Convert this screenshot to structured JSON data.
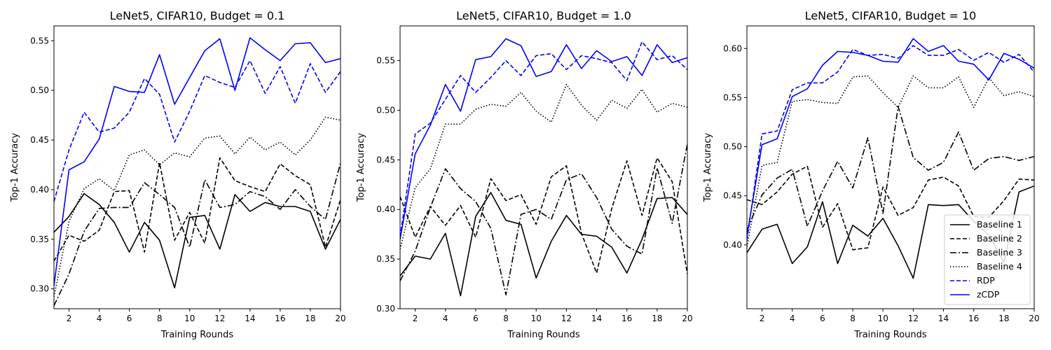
{
  "chart_data": [
    {
      "type": "line",
      "title": "LeNet5, CIFAR10, Budget = 0.1",
      "xlabel": "Training Rounds",
      "ylabel": "Top-1 Accuracy",
      "xlim": [
        1,
        20
      ],
      "ylim": [
        0.28,
        0.565
      ],
      "xticks": [
        "2",
        "4",
        "6",
        "8",
        "10",
        "12",
        "14",
        "16",
        "18",
        "20"
      ],
      "yticks": [
        "0.30",
        "0.35",
        "0.40",
        "0.45",
        "0.50",
        "0.55"
      ],
      "x": [
        1,
        2,
        3,
        4,
        5,
        6,
        7,
        8,
        9,
        10,
        11,
        12,
        13,
        14,
        15,
        16,
        17,
        18,
        19,
        20
      ],
      "series": [
        {
          "name": "Baseline 1",
          "color": "#000000",
          "dash": "solid",
          "values": [
            0.357,
            0.373,
            0.396,
            0.385,
            0.367,
            0.337,
            0.367,
            0.349,
            0.301,
            0.372,
            0.374,
            0.34,
            0.395,
            0.378,
            0.387,
            0.383,
            0.383,
            0.378,
            0.34,
            0.37
          ]
        },
        {
          "name": "Baseline 2",
          "color": "#000000",
          "dash": "dashed",
          "values": [
            0.328,
            0.354,
            0.348,
            0.359,
            0.398,
            0.399,
            0.337,
            0.427,
            0.349,
            0.377,
            0.346,
            0.432,
            0.409,
            0.403,
            0.398,
            0.426,
            0.414,
            0.405,
            0.342,
            0.39
          ]
        },
        {
          "name": "Baseline 3",
          "color": "#000000",
          "dash": "dashdot",
          "values": [
            0.283,
            0.315,
            0.358,
            0.381,
            0.382,
            0.382,
            0.407,
            0.395,
            0.382,
            0.342,
            0.41,
            0.382,
            0.385,
            0.398,
            0.393,
            0.38,
            0.4,
            0.383,
            0.37,
            0.427
          ]
        },
        {
          "name": "Baseline 4",
          "color": "#000000",
          "dash": "dotted",
          "values": [
            0.292,
            0.368,
            0.401,
            0.411,
            0.399,
            0.435,
            0.44,
            0.425,
            0.437,
            0.433,
            0.452,
            0.454,
            0.436,
            0.453,
            0.44,
            0.448,
            0.435,
            0.45,
            0.473,
            0.47
          ]
        },
        {
          "name": "RDP",
          "color": "#0000ff",
          "dash": "dashed",
          "values": [
            0.388,
            0.44,
            0.478,
            0.458,
            0.462,
            0.478,
            0.512,
            0.496,
            0.448,
            0.479,
            0.515,
            0.508,
            0.503,
            0.53,
            0.497,
            0.524,
            0.487,
            0.527,
            0.498,
            0.519
          ]
        },
        {
          "name": "zCDP",
          "color": "#0000ff",
          "dash": "solid",
          "values": [
            0.303,
            0.42,
            0.428,
            0.451,
            0.504,
            0.499,
            0.498,
            0.536,
            0.486,
            0.513,
            0.54,
            0.552,
            0.5,
            0.553,
            0.541,
            0.53,
            0.547,
            0.548,
            0.528,
            0.532
          ]
        }
      ]
    },
    {
      "type": "line",
      "title": "LeNet5, CIFAR10, Budget = 1.0",
      "xlabel": "Training Rounds",
      "ylabel": "Top-1 Accuracy",
      "xlim": [
        1,
        20
      ],
      "ylim": [
        0.3,
        0.585
      ],
      "xticks": [
        "2",
        "4",
        "6",
        "8",
        "10",
        "12",
        "14",
        "16",
        "18",
        "20"
      ],
      "yticks": [
        "0.30",
        "0.35",
        "0.40",
        "0.45",
        "0.50",
        "0.55"
      ],
      "x": [
        1,
        2,
        3,
        4,
        5,
        6,
        7,
        8,
        9,
        10,
        11,
        12,
        13,
        14,
        15,
        16,
        17,
        18,
        19,
        20
      ],
      "series": [
        {
          "name": "Baseline 1",
          "color": "#000000",
          "dash": "solid",
          "values": [
            0.333,
            0.353,
            0.35,
            0.376,
            0.313,
            0.393,
            0.417,
            0.389,
            0.385,
            0.331,
            0.368,
            0.394,
            0.375,
            0.373,
            0.362,
            0.336,
            0.37,
            0.411,
            0.412,
            0.395
          ]
        },
        {
          "name": "Baseline 2",
          "color": "#000000",
          "dash": "dashed",
          "values": [
            0.413,
            0.372,
            0.403,
            0.384,
            0.404,
            0.372,
            0.431,
            0.409,
            0.415,
            0.385,
            0.433,
            0.444,
            0.376,
            0.336,
            0.401,
            0.449,
            0.394,
            0.452,
            0.428,
            0.335
          ]
        },
        {
          "name": "Baseline 3",
          "color": "#000000",
          "dash": "dashdot",
          "values": [
            0.328,
            0.358,
            0.402,
            0.441,
            0.421,
            0.408,
            0.381,
            0.314,
            0.395,
            0.4,
            0.39,
            0.43,
            0.436,
            0.412,
            0.38,
            0.363,
            0.355,
            0.442,
            0.386,
            0.466
          ]
        },
        {
          "name": "Baseline 4",
          "color": "#000000",
          "dash": "dotted",
          "values": [
            0.36,
            0.422,
            0.441,
            0.486,
            0.486,
            0.501,
            0.506,
            0.504,
            0.518,
            0.499,
            0.488,
            0.526,
            0.505,
            0.49,
            0.51,
            0.502,
            0.521,
            0.498,
            0.507,
            0.503
          ]
        },
        {
          "name": "RDP",
          "color": "#0000ff",
          "dash": "dashed",
          "values": [
            0.372,
            0.476,
            0.487,
            0.511,
            0.535,
            0.518,
            0.533,
            0.55,
            0.535,
            0.555,
            0.557,
            0.541,
            0.555,
            0.552,
            0.548,
            0.53,
            0.569,
            0.551,
            0.555,
            0.541
          ]
        },
        {
          "name": "zCDP",
          "color": "#0000ff",
          "dash": "solid",
          "values": [
            0.37,
            0.456,
            0.485,
            0.526,
            0.499,
            0.551,
            0.554,
            0.572,
            0.565,
            0.534,
            0.539,
            0.566,
            0.542,
            0.56,
            0.549,
            0.554,
            0.535,
            0.566,
            0.548,
            0.553
          ]
        }
      ]
    },
    {
      "type": "line",
      "title": "LeNet5, CIFAR10, Budget = 10",
      "xlabel": "Training Rounds",
      "ylabel": "Top-1 Accuracy",
      "xlim": [
        1,
        20
      ],
      "ylim": [
        0.335,
        0.623
      ],
      "xticks": [
        "2",
        "4",
        "6",
        "8",
        "10",
        "12",
        "14",
        "16",
        "18",
        "20"
      ],
      "yticks": [
        "0.40",
        "0.45",
        "0.50",
        "0.55",
        "0.60"
      ],
      "x": [
        1,
        2,
        3,
        4,
        5,
        6,
        7,
        8,
        9,
        10,
        11,
        12,
        13,
        14,
        15,
        16,
        17,
        18,
        19,
        20
      ],
      "legend": "lower-right",
      "series": [
        {
          "name": "Baseline 1",
          "color": "#000000",
          "dash": "solid",
          "values": [
            0.392,
            0.416,
            0.421,
            0.381,
            0.398,
            0.444,
            0.381,
            0.42,
            0.409,
            0.427,
            0.399,
            0.366,
            0.441,
            0.44,
            0.441,
            0.424,
            0.41,
            0.382,
            0.454,
            0.46
          ]
        },
        {
          "name": "Baseline 2",
          "color": "#000000",
          "dash": "dashed",
          "values": [
            0.446,
            0.441,
            0.454,
            0.472,
            0.48,
            0.418,
            0.442,
            0.395,
            0.397,
            0.459,
            0.43,
            0.438,
            0.466,
            0.469,
            0.46,
            0.429,
            0.428,
            0.445,
            0.467,
            0.466
          ]
        },
        {
          "name": "Baseline 3",
          "color": "#000000",
          "dash": "dashdot",
          "values": [
            0.415,
            0.451,
            0.468,
            0.477,
            0.419,
            0.455,
            0.485,
            0.458,
            0.509,
            0.432,
            0.541,
            0.489,
            0.476,
            0.484,
            0.515,
            0.476,
            0.488,
            0.49,
            0.486,
            0.49
          ]
        },
        {
          "name": "Baseline 4",
          "color": "#000000",
          "dash": "dotted",
          "values": [
            0.398,
            0.481,
            0.484,
            0.546,
            0.548,
            0.545,
            0.544,
            0.571,
            0.572,
            0.555,
            0.54,
            0.572,
            0.56,
            0.56,
            0.571,
            0.54,
            0.57,
            0.552,
            0.556,
            0.551
          ]
        },
        {
          "name": "RDP",
          "color": "#0000ff",
          "dash": "dashed",
          "values": [
            0.405,
            0.513,
            0.516,
            0.558,
            0.565,
            0.565,
            0.576,
            0.599,
            0.593,
            0.594,
            0.59,
            0.603,
            0.593,
            0.593,
            0.599,
            0.588,
            0.596,
            0.586,
            0.594,
            0.576
          ]
        },
        {
          "name": "zCDP",
          "color": "#0000ff",
          "dash": "solid",
          "values": [
            0.409,
            0.502,
            0.508,
            0.551,
            0.559,
            0.583,
            0.597,
            0.596,
            0.593,
            0.587,
            0.586,
            0.61,
            0.597,
            0.603,
            0.587,
            0.584,
            0.568,
            0.595,
            0.589,
            0.58
          ]
        }
      ]
    }
  ]
}
